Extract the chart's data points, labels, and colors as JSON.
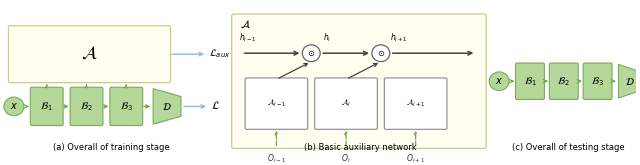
{
  "fig_width": 6.4,
  "fig_height": 1.65,
  "dpi": 100,
  "bg": "#ffffff",
  "green_fill": "#b5d89a",
  "green_edge": "#7aaa5a",
  "yellow_fill": "#fffff0",
  "yellow_edge": "#cccc88",
  "white_fill": "#ffffff",
  "gray_edge": "#888888",
  "arrow_green": "#6aaa50",
  "arrow_blue": "#80c0e0",
  "arrow_black": "#444444",
  "caption_a": "(a) Overall of training stage",
  "caption_b": "(b) Basic auxiliary network",
  "caption_c": "(c) Overall of testing stage"
}
